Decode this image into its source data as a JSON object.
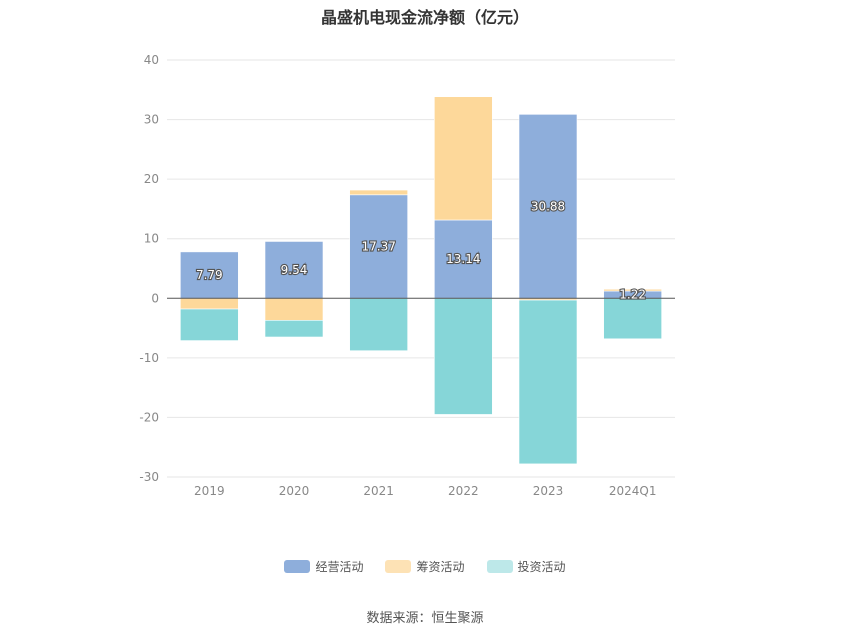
{
  "chart_data": {
    "type": "bar",
    "stacked": true,
    "title": "晶盛机电现金流净额（亿元）",
    "categories": [
      "2019",
      "2020",
      "2021",
      "2022",
      "2023",
      "2024Q1"
    ],
    "series": [
      {
        "name": "经营活动",
        "color": "#8eaedb",
        "values": [
          7.79,
          9.54,
          17.37,
          13.14,
          30.88,
          1.22
        ],
        "labels": [
          "7.79",
          "9.54",
          "17.37",
          "13.14",
          "30.88",
          "1.22"
        ]
      },
      {
        "name": "筹资活动",
        "color": "#fdd89a",
        "values": [
          -1.8,
          -3.7,
          0.8,
          20.7,
          -0.3,
          0.3
        ]
      },
      {
        "name": "投资活动",
        "color": "#86d6d8",
        "values": [
          -5.3,
          -2.8,
          -8.8,
          -19.5,
          -27.5,
          -6.8
        ]
      }
    ],
    "ylim": [
      -30,
      40
    ],
    "yticks": [
      -30,
      -20,
      -10,
      0,
      10,
      20,
      30,
      40
    ],
    "grid": true,
    "legend_position": "bottom"
  },
  "source": "数据来源：恒生聚源"
}
